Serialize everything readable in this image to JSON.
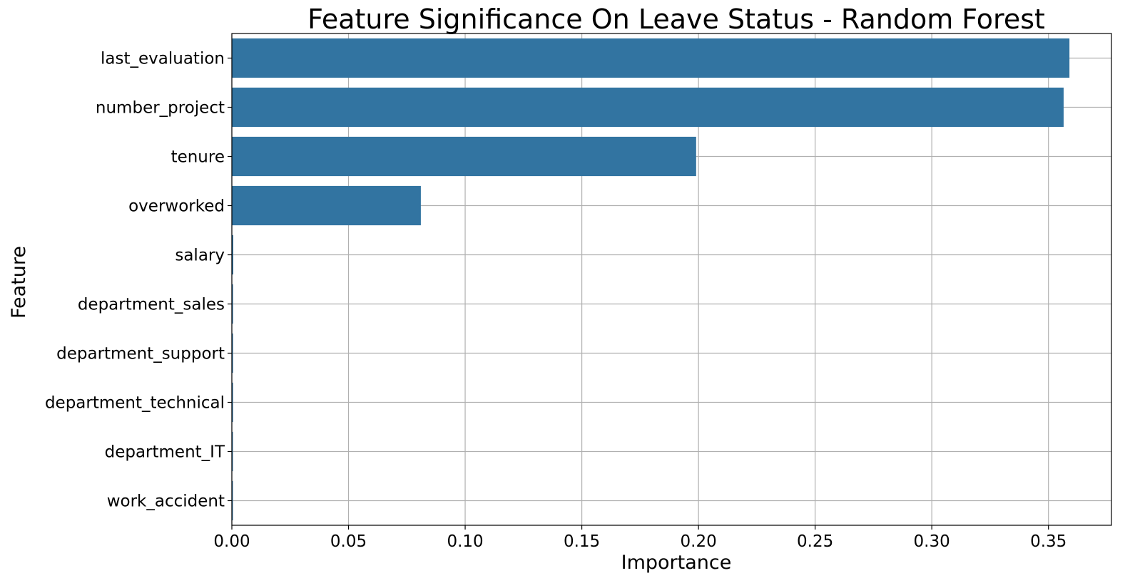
{
  "chart_data": {
    "type": "bar",
    "orientation": "horizontal",
    "title": "Feature Significance On Leave Status - Random Forest",
    "xlabel": "Importance",
    "ylabel": "Feature",
    "categories": [
      "last_evaluation",
      "number_project",
      "tenure",
      "overworked",
      "salary",
      "department_sales",
      "department_support",
      "department_technical",
      "department_IT",
      "work_accident"
    ],
    "values": [
      0.359,
      0.3565,
      0.199,
      0.081,
      0.0006,
      0.0005,
      0.0005,
      0.0005,
      0.0004,
      0.0003
    ],
    "xlim": [
      0,
      0.377
    ],
    "xticks": [
      0.0,
      0.05,
      0.1,
      0.15,
      0.2,
      0.25,
      0.3,
      0.35
    ],
    "xtick_labels": [
      "0.00",
      "0.05",
      "0.10",
      "0.15",
      "0.20",
      "0.25",
      "0.30",
      "0.35"
    ],
    "grid": true,
    "bar_color": "#3274a1"
  }
}
